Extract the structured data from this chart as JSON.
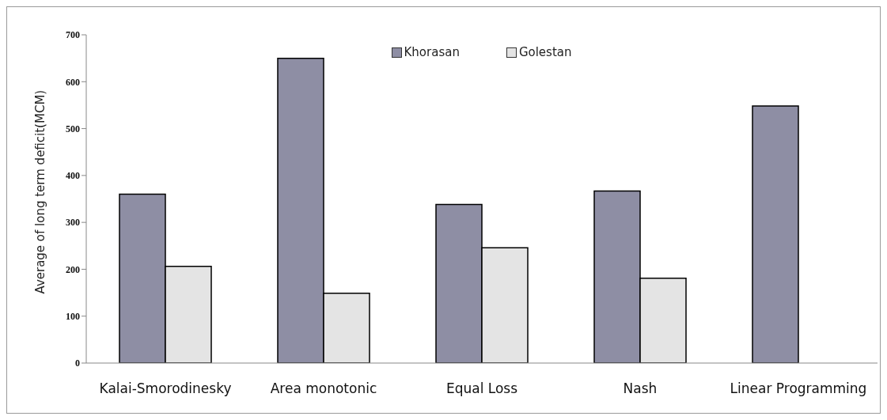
{
  "chart_data": {
    "type": "bar",
    "ylabel": "Average of long term deficit(MCM)",
    "categories": [
      "Kalai-Smorodinesky",
      "Area monotonic",
      "Equal Loss",
      "Nash",
      "Linear Programming"
    ],
    "series": [
      {
        "name": "Khorasan",
        "color": "#8e8ea4",
        "values": [
          360,
          650,
          338,
          367,
          548
        ]
      },
      {
        "name": "Golestan",
        "color": "#e4e4e4",
        "values": [
          206,
          149,
          246,
          181,
          null
        ]
      }
    ],
    "ylim": [
      0,
      700
    ],
    "yticks": [
      0,
      100,
      200,
      300,
      400,
      500,
      600,
      700
    ],
    "grid": false,
    "legend": "top"
  }
}
